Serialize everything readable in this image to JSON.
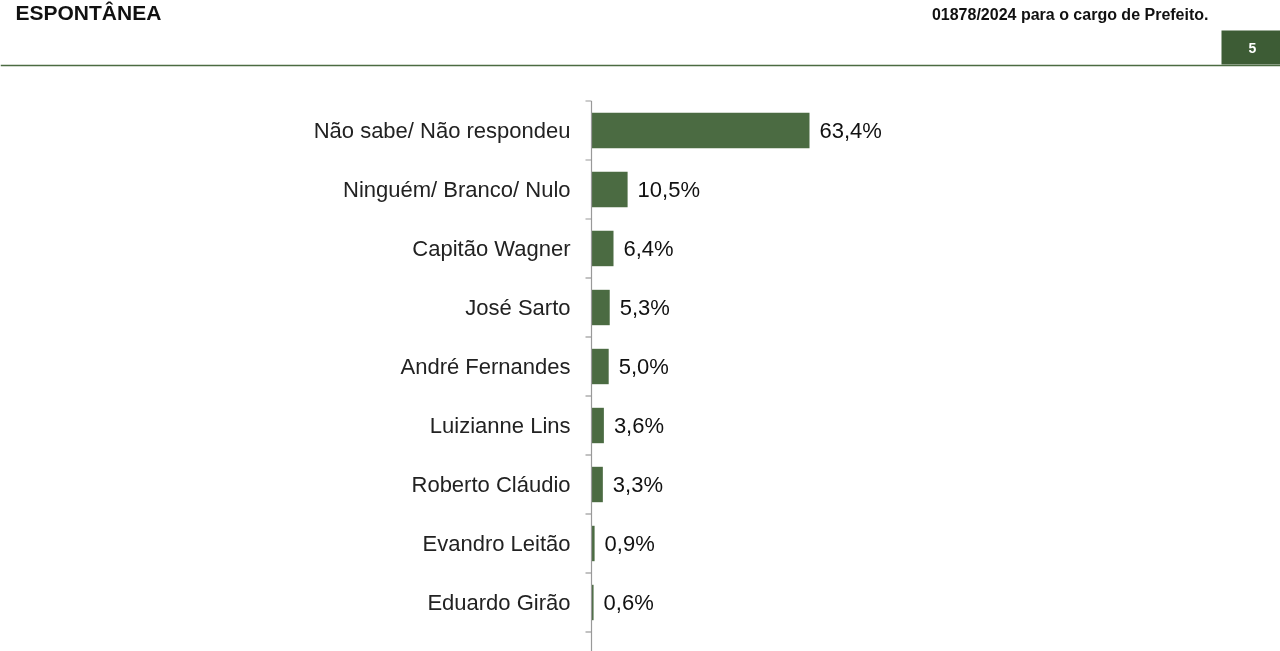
{
  "chart_data": {
    "type": "bar",
    "orientation": "horizontal",
    "title": "ESPONTÂNEA",
    "annotations": [
      "01878/2024 para o cargo de Prefeito.",
      "5"
    ],
    "categories": [
      "Não sabe/ Não respondeu",
      "Ninguém/ Branco/ Nulo",
      "Capitão Wagner",
      "José Sarto",
      "André Fernandes",
      "Luizianne Lins",
      "Roberto Cláudio",
      "Evandro Leitão",
      "Eduardo Girão"
    ],
    "values": [
      63.4,
      10.5,
      6.4,
      5.3,
      5.0,
      3.6,
      3.3,
      0.9,
      0.6
    ],
    "value_labels": [
      "63,4%",
      "10,5%",
      "6,4%",
      "5,3%",
      "5,0%",
      "3,6%",
      "3,3%",
      "0,9%",
      "0,6%"
    ],
    "color": "#4b6b42"
  }
}
